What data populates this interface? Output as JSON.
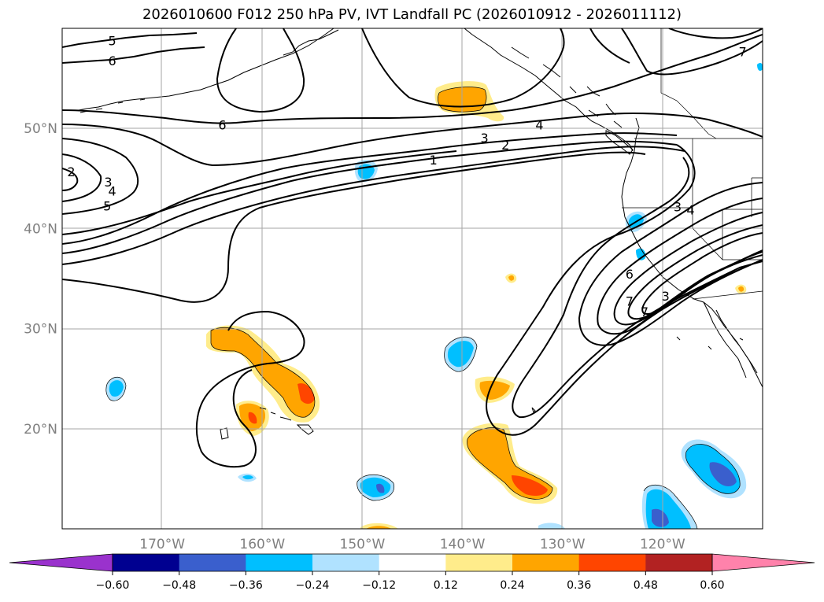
{
  "title": "2026010600 F012 250 hPa PV, IVT Landfall PC (2026010912 - 2026011112)",
  "map": {
    "lon_range": [
      -180,
      -110
    ],
    "lat_range": [
      10,
      60
    ],
    "lat_ticks": [
      {
        "value": 50,
        "label": "50°N"
      },
      {
        "value": 40,
        "label": "40°N"
      },
      {
        "value": 30,
        "label": "30°N"
      },
      {
        "value": 20,
        "label": "20°N"
      }
    ],
    "lon_ticks": [
      {
        "value": -170,
        "label": "170°W"
      },
      {
        "value": -160,
        "label": "160°W"
      },
      {
        "value": -150,
        "label": "150°W"
      },
      {
        "value": -140,
        "label": "140°W"
      },
      {
        "value": -130,
        "label": "130°W"
      },
      {
        "value": -120,
        "label": "120°W"
      }
    ],
    "contour_labels": [
      {
        "text": "5",
        "lon": -175,
        "lat": 58.7
      },
      {
        "text": "6",
        "lon": -175,
        "lat": 56.7
      },
      {
        "text": "6",
        "lon": -164,
        "lat": 50.3
      },
      {
        "text": "7",
        "lon": -112,
        "lat": 57.6
      },
      {
        "text": "2",
        "lon": -179.1,
        "lat": 45.6
      },
      {
        "text": "3",
        "lon": -175.4,
        "lat": 44.6
      },
      {
        "text": "4",
        "lon": -175,
        "lat": 43.7
      },
      {
        "text": "5",
        "lon": -175.5,
        "lat": 42.2
      },
      {
        "text": "1",
        "lon": -142.9,
        "lat": 46.8
      },
      {
        "text": "2",
        "lon": -135.7,
        "lat": 48.3
      },
      {
        "text": "3",
        "lon": -137.8,
        "lat": 49.0
      },
      {
        "text": "4",
        "lon": -132.3,
        "lat": 50.3
      },
      {
        "text": "3",
        "lon": -118.5,
        "lat": 42.1
      },
      {
        "text": "4",
        "lon": -117.2,
        "lat": 41.8
      },
      {
        "text": "6",
        "lon": -123.3,
        "lat": 35.4
      },
      {
        "text": "7",
        "lon": -123.3,
        "lat": 32.7
      },
      {
        "text": "7",
        "lon": -121.8,
        "lat": 31.6
      },
      {
        "text": "3",
        "lon": -119.7,
        "lat": 33.2
      }
    ]
  },
  "colorbar": {
    "ticks": [
      "−0.60",
      "−0.48",
      "−0.36",
      "−0.24",
      "−0.12",
      "0.12",
      "0.24",
      "0.36",
      "0.48",
      "0.60"
    ],
    "colors": [
      "#9a32cd",
      "#000090",
      "#3a5fcd",
      "#00bfff",
      "#b0e2ff",
      "#ffffff",
      "#ffec8b",
      "#ffa500",
      "#ff4500",
      "#b22222",
      "#ff82ab"
    ]
  }
}
